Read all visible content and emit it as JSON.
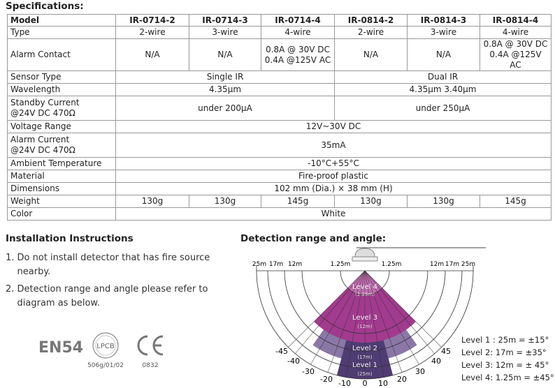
{
  "specifications": {
    "title": "Specifications:",
    "table": {
      "header": [
        "Model",
        "IR-0714-2",
        "IR-0714-3",
        "IR-0714-4",
        "IR-0814-2",
        "IR-0814-3",
        "IR-0814-4"
      ],
      "rows": [
        [
          "Type",
          "2-wire",
          "3-wire",
          "4-wire",
          "2-wire",
          "3-wire",
          "4-wire"
        ],
        [
          "Alarm Contact",
          "N/A",
          "N/A",
          "0.8A @ 30V DC\n0.4A @125V AC",
          "N/A",
          "N/A",
          "0.8A @ 30V DC\n0.4A @125V AC"
        ],
        [
          "Sensor Type",
          "Single IR",
          "Dual IR"
        ],
        [
          "Wavelength",
          "4.35μm",
          "4.35μm 3.40μm"
        ],
        [
          "Standby Current\n@24V DC  470Ω",
          "under 200μA",
          "under 250μA"
        ],
        [
          "Voltage Range",
          "12V~30V DC"
        ],
        [
          "Alarm Current\n@24V DC  470Ω",
          "35mA"
        ],
        [
          "Ambient Temperature",
          "-10°C+55°C"
        ],
        [
          "Material",
          "Fire-proof plastic"
        ],
        [
          "Dimensions",
          "102 mm (Dia.) × 38 mm (H)"
        ],
        [
          "Weight",
          "130g",
          "130g",
          "145g",
          "130g",
          "130g",
          "145g"
        ],
        [
          "Color",
          "White"
        ]
      ]
    }
  },
  "installation": {
    "title": "Installation Instructions",
    "items": [
      "1. Do not install detector that has fire source\n    nearby.",
      "2. Detection range and angle please refer to\n    diagram as below."
    ]
  },
  "certifications": {
    "en54": "EN54",
    "lpcb": "LPCB",
    "lpcb_code": "506g/01/02",
    "ce_code": "0832"
  },
  "detection": {
    "title": "Detection range and angle:",
    "radius_labels_left": [
      "25m",
      "17m",
      "12m",
      "1.25m"
    ],
    "radius_labels_right": [
      "1.25m",
      "12m",
      "17m",
      "25m"
    ],
    "angle_labels": [
      "-45",
      "-40",
      "-30",
      "-20",
      "-10",
      "0",
      "10",
      "20",
      "30",
      "40",
      "45"
    ],
    "levels": [
      {
        "name": "Level 4",
        "range": "(1.25m)"
      },
      {
        "name": "Level 3",
        "range": "(12m)"
      },
      {
        "name": "Level 2",
        "range": "(17m)"
      },
      {
        "name": "Level 1",
        "range": "(25m)"
      }
    ],
    "legend": [
      "Level 1 : 25m = ±15°",
      "Level 2: 17m = ±35°",
      "Level 3: 12m = ± 45°",
      "Level 4: 1.25m = ±45°"
    ]
  }
}
